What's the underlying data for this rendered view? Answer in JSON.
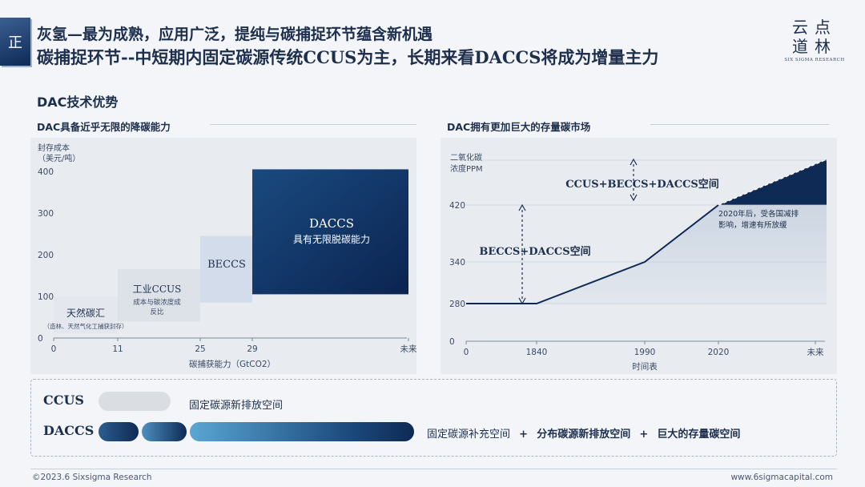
{
  "header": {
    "badge": "正",
    "title_line1": "灰氢—最为成熟，应用广泛，提纯与碳捕捉环节蕴含新机遇",
    "title_line2": "碳捕捉环节--中短期内固定碳源传统CCUS为主，长期来看DACCS将成为增量主力",
    "logo_line1": "云点",
    "logo_line2": "道林",
    "logo_sub": "SIX SIGMA RESEARCH"
  },
  "section_title": "DAC技术优势",
  "left_subtitle": "DAC具备近乎无限的降碳能力",
  "right_subtitle": "DAC拥有更加巨大的存量碳市场",
  "colors": {
    "navy": "#0e2a55",
    "steel": "#1c4b7e",
    "light_blue": "#d9e2ef",
    "grey_block": "#dfe3ea",
    "panel_bg": "#e6eaf0"
  },
  "chart_data": [
    {
      "type": "bar",
      "title": "DAC具备近乎无限的降碳能力",
      "ylabel": "封存成本",
      "ylabel_unit": "（美元/吨）",
      "xlabel": "碳捕获能力（GtCO2）",
      "y_ticks": [
        "0",
        "100",
        "200",
        "300",
        "400"
      ],
      "x_ticks": [
        "0",
        "11",
        "25",
        "29",
        "未来"
      ],
      "ylim": [
        0,
        400
      ],
      "segments": [
        {
          "name": "天然碳汇",
          "note": "（造林、天然气化工捕获封存）",
          "x_start": 0,
          "x_end": 11,
          "value": 100
        },
        {
          "name": "工业CCUS",
          "note_line1": "成本与碳浓度成",
          "note_line2": "反比",
          "x_start": 11,
          "x_end": 25,
          "value": 165
        },
        {
          "name": "BECCS",
          "x_start": 25,
          "x_end": 29,
          "value": 245
        },
        {
          "name": "DACCS",
          "note": "具有无限脱碳能力",
          "x_start": 29,
          "x_end": "未来",
          "value": 405
        }
      ]
    },
    {
      "type": "line",
      "title": "DAC拥有更加巨大的存量碳市场",
      "ylabel_line1": "二氧化碳",
      "ylabel_line2": "浓度PPM",
      "xlabel": "时间表",
      "y_ticks": [
        "0",
        "280",
        "340",
        "420"
      ],
      "x_ticks": [
        "0",
        "1840",
        "1990",
        "2020",
        "未来"
      ],
      "x": [
        "0",
        "1840",
        "1990",
        "2020",
        "未来"
      ],
      "values": [
        280,
        280,
        340,
        420,
        480
      ],
      "ylim": [
        0,
        480
      ],
      "annotations": {
        "ccus_space": "CCUS+BECCS+DACCS空间",
        "beccs_space": "BECCS+DACCS空间",
        "note_line1": "2020年后，受各国减排",
        "note_line2": "影响，增速有所放缓"
      }
    }
  ],
  "bottom_panel": {
    "ccus_label": "CCUS",
    "ccus_text": "固定碳源新排放空间",
    "daccs_label": "DACCS",
    "daccs_text_1": "固定碳源补充空间",
    "plus": "+",
    "daccs_text_2": "分布碳源新排放空间",
    "daccs_text_3": "巨大的存量碳空间"
  },
  "footer": {
    "left": "©2023.6 Sixsigma Research",
    "right": "www.6sigmacapital.com"
  }
}
